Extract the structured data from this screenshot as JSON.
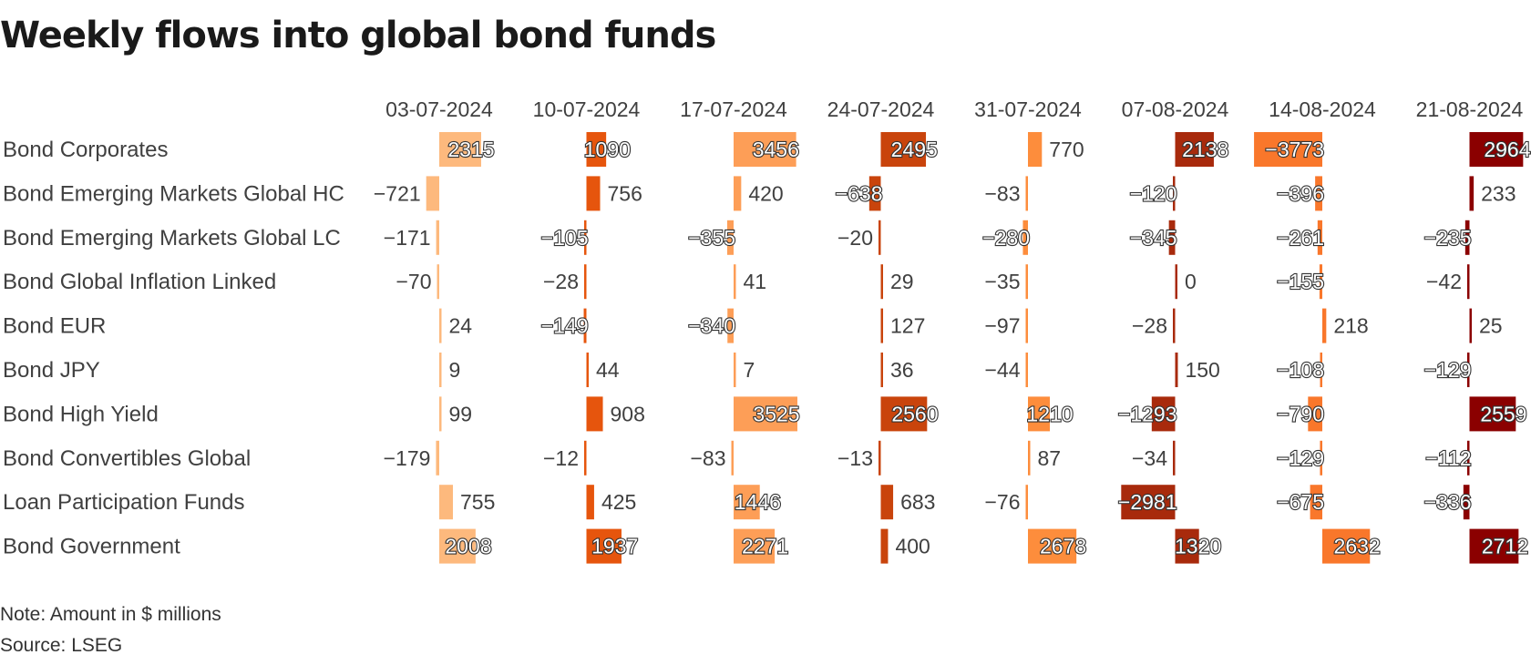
{
  "chart_data": {
    "type": "table",
    "title": "Weekly flows into global bond funds",
    "note": "Note: Amount in $ millions",
    "source": "Source: LSEG",
    "columns": [
      "03-07-2024",
      "10-07-2024",
      "17-07-2024",
      "24-07-2024",
      "31-07-2024",
      "07-08-2024",
      "14-08-2024",
      "21-08-2024"
    ],
    "column_colors": [
      "#fdb97d",
      "#e6550d",
      "#fd9e57",
      "#c9440c",
      "#fd8d3c",
      "#a82a0c",
      "#f9772b",
      "#8b0000"
    ],
    "rows": [
      {
        "label": "Bond Corporates",
        "values": [
          2315,
          1090,
          3456,
          2495,
          770,
          2138,
          -3773,
          2964
        ]
      },
      {
        "label": "Bond Emerging Markets Global HC",
        "values": [
          -721,
          756,
          420,
          -638,
          -83,
          -120,
          -396,
          233
        ]
      },
      {
        "label": "Bond Emerging Markets Global LC",
        "values": [
          -171,
          -105,
          -355,
          -20,
          -280,
          -345,
          -261,
          -235
        ]
      },
      {
        "label": "Bond Global Inflation Linked",
        "values": [
          -70,
          -28,
          41,
          29,
          -35,
          0,
          -155,
          -42
        ]
      },
      {
        "label": "Bond EUR",
        "values": [
          24,
          -149,
          -340,
          127,
          -97,
          -28,
          218,
          25
        ]
      },
      {
        "label": "Bond JPY",
        "values": [
          9,
          44,
          7,
          36,
          -44,
          150,
          -108,
          -129
        ]
      },
      {
        "label": "Bond High Yield",
        "values": [
          99,
          908,
          3525,
          2560,
          1210,
          -1293,
          -790,
          2559
        ]
      },
      {
        "label": "Bond Convertibles Global",
        "values": [
          -179,
          -12,
          -83,
          -13,
          87,
          -34,
          -129,
          -112
        ]
      },
      {
        "label": "Loan Participation Funds",
        "values": [
          755,
          425,
          1446,
          683,
          -76,
          -2981,
          -675,
          -336
        ]
      },
      {
        "label": "Bond Government",
        "values": [
          2008,
          1937,
          2271,
          400,
          2678,
          1320,
          2632,
          2712
        ]
      }
    ]
  }
}
